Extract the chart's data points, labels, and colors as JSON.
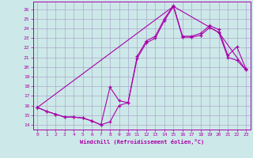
{
  "bg_color": "#cde8e8",
  "grid_color": "#aaaacc",
  "line_color": "#aa00aa",
  "xlim": [
    -0.5,
    23.5
  ],
  "ylim": [
    13.5,
    26.8
  ],
  "xticks": [
    0,
    1,
    2,
    3,
    4,
    5,
    6,
    7,
    8,
    9,
    10,
    11,
    12,
    13,
    14,
    15,
    16,
    17,
    18,
    19,
    20,
    21,
    22,
    23
  ],
  "yticks": [
    14,
    15,
    16,
    17,
    18,
    19,
    20,
    21,
    22,
    23,
    24,
    25,
    26
  ],
  "xlabel": "Windchill (Refroidissement éolien,°C)",
  "line1_x": [
    0,
    1,
    2,
    3,
    4,
    5,
    6,
    7,
    8,
    9,
    10,
    11,
    12,
    13,
    14,
    15,
    16,
    17,
    18,
    19,
    20,
    21,
    22,
    23
  ],
  "line1_y": [
    15.8,
    15.4,
    15.1,
    14.8,
    14.8,
    14.7,
    14.4,
    14.0,
    14.3,
    16.0,
    16.3,
    20.9,
    22.5,
    23.0,
    24.8,
    26.3,
    23.1,
    23.1,
    23.3,
    24.1,
    23.6,
    21.0,
    20.7,
    19.7
  ],
  "line2_x": [
    0,
    1,
    2,
    3,
    4,
    5,
    6,
    7,
    8,
    9,
    10,
    11,
    12,
    13,
    14,
    15,
    16,
    17,
    18,
    19,
    20,
    21,
    22,
    23
  ],
  "line2_y": [
    15.8,
    15.4,
    15.1,
    14.8,
    14.8,
    14.7,
    14.4,
    14.0,
    17.9,
    16.5,
    16.3,
    21.1,
    22.7,
    23.2,
    25.0,
    26.4,
    23.2,
    23.2,
    23.5,
    24.3,
    23.9,
    21.2,
    22.1,
    19.8
  ],
  "line3_x": [
    0,
    15,
    20,
    23
  ],
  "line3_y": [
    15.8,
    26.3,
    23.6,
    19.7
  ]
}
